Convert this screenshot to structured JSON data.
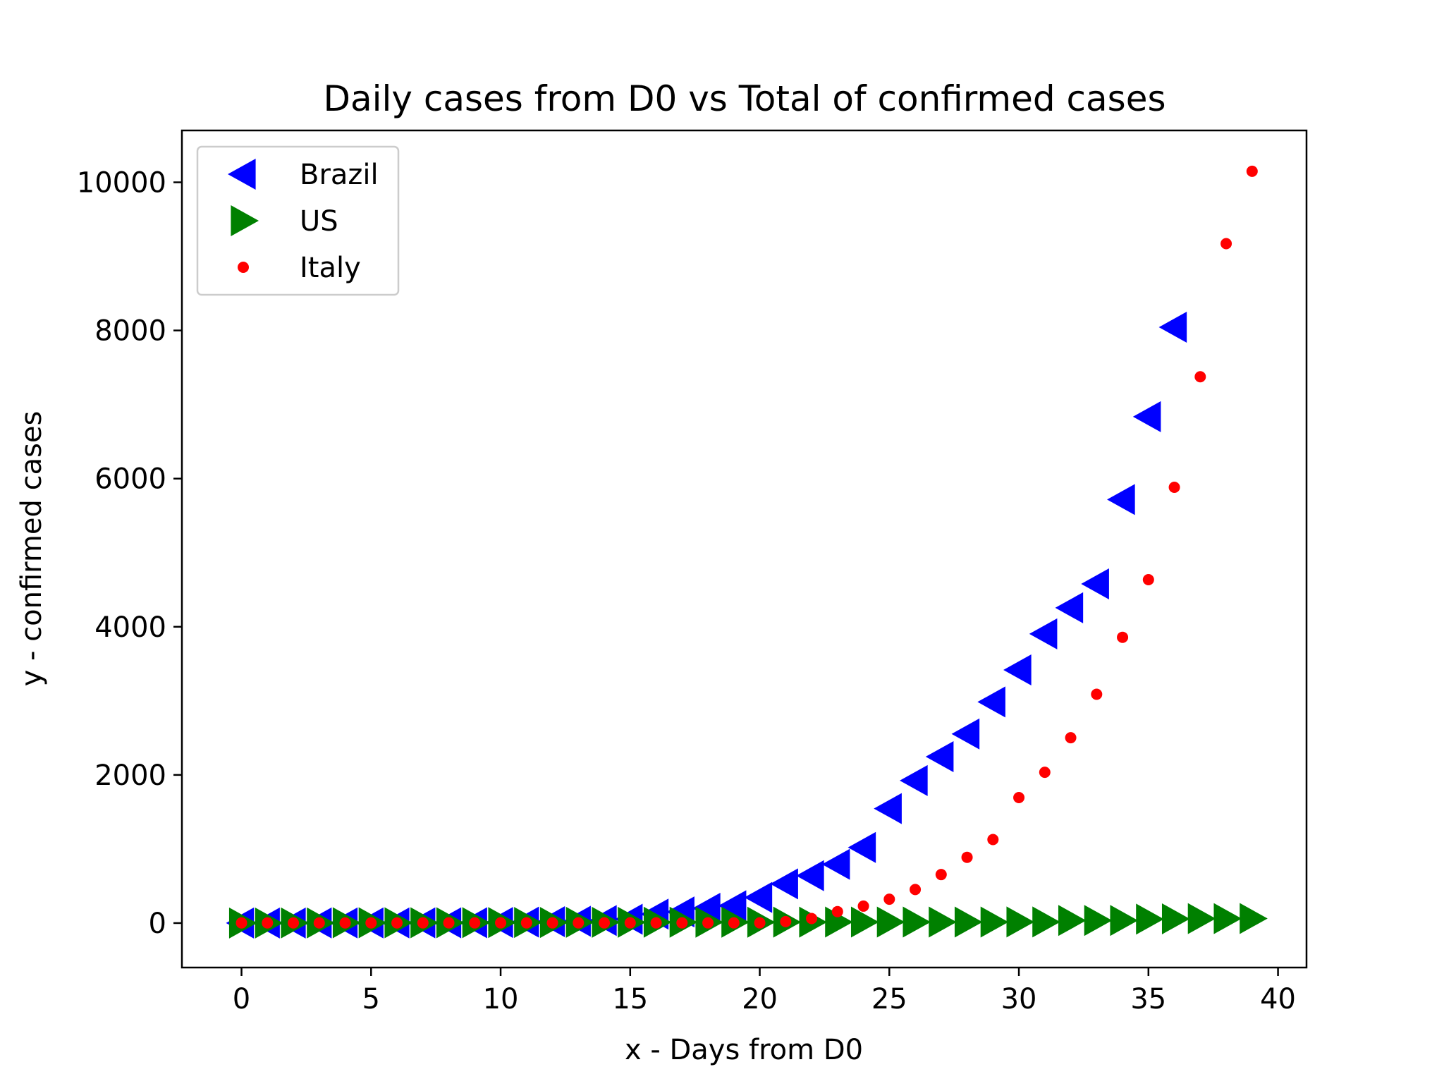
{
  "chart_data": {
    "type": "scatter",
    "title": "Daily cases from D0 vs Total of confirmed cases",
    "xlabel": "x - Days from D0",
    "ylabel": "y - confirmed cases",
    "xlim": [
      -2.3,
      41.1
    ],
    "ylim": [
      -600,
      10700
    ],
    "xticks": [
      0,
      5,
      10,
      15,
      20,
      25,
      30,
      35,
      40
    ],
    "yticks": [
      0,
      2000,
      4000,
      6000,
      8000,
      10000
    ],
    "xtick_labels": [
      "0",
      "5",
      "10",
      "15",
      "20",
      "25",
      "30",
      "35",
      "40"
    ],
    "ytick_labels": [
      "0",
      "2000",
      "4000",
      "6000",
      "8000",
      "10000"
    ],
    "legend_position": "top-left",
    "series": [
      {
        "name": "Brazil",
        "color": "#0000ff",
        "marker": "triangle-left",
        "x": [
          0,
          1,
          2,
          3,
          4,
          5,
          6,
          7,
          8,
          9,
          10,
          11,
          12,
          13,
          14,
          15,
          16,
          17,
          18,
          19,
          20,
          21,
          22,
          23,
          24,
          25,
          26,
          27,
          28,
          29,
          30,
          31,
          32,
          33,
          34,
          35,
          36
        ],
        "y": [
          1,
          1,
          1,
          2,
          2,
          2,
          2,
          3,
          3,
          4,
          8,
          13,
          19,
          25,
          34,
          52,
          121,
          151,
          200,
          234,
          346,
          529,
          640,
          793,
          1021,
          1546,
          1924,
          2247,
          2554,
          2985,
          3417,
          3904,
          4256,
          4579,
          5717,
          6836,
          8044
        ]
      },
      {
        "name": "US",
        "color": "#008000",
        "marker": "triangle-right",
        "x": [
          0,
          1,
          2,
          3,
          4,
          5,
          6,
          7,
          8,
          9,
          10,
          11,
          12,
          13,
          14,
          15,
          16,
          17,
          18,
          19,
          20,
          21,
          22,
          23,
          24,
          25,
          26,
          27,
          28,
          29,
          30,
          31,
          32,
          33,
          34,
          35,
          36,
          37,
          38,
          39
        ],
        "y": [
          1,
          1,
          2,
          2,
          5,
          5,
          5,
          5,
          5,
          6,
          7,
          8,
          8,
          11,
          11,
          11,
          12,
          12,
          12,
          12,
          12,
          13,
          13,
          14,
          14,
          14,
          14,
          14,
          14,
          14,
          15,
          15,
          35,
          35,
          35,
          53,
          57,
          60,
          60,
          62
        ]
      },
      {
        "name": "Italy",
        "color": "#ff0000",
        "marker": "dot",
        "x": [
          0,
          1,
          2,
          3,
          4,
          5,
          6,
          7,
          8,
          9,
          10,
          11,
          12,
          13,
          14,
          15,
          16,
          17,
          18,
          19,
          20,
          21,
          22,
          23,
          24,
          25,
          26,
          27,
          28,
          29,
          30,
          31,
          32,
          33,
          34,
          35,
          36,
          37,
          38,
          39
        ],
        "y": [
          2,
          2,
          2,
          2,
          2,
          2,
          2,
          3,
          3,
          3,
          3,
          3,
          3,
          3,
          3,
          3,
          3,
          3,
          3,
          3,
          3,
          20,
          62,
          155,
          229,
          322,
          453,
          655,
          888,
          1128,
          1694,
          2036,
          2502,
          3089,
          3858,
          4636,
          5883,
          7375,
          9172,
          10149
        ]
      }
    ]
  }
}
